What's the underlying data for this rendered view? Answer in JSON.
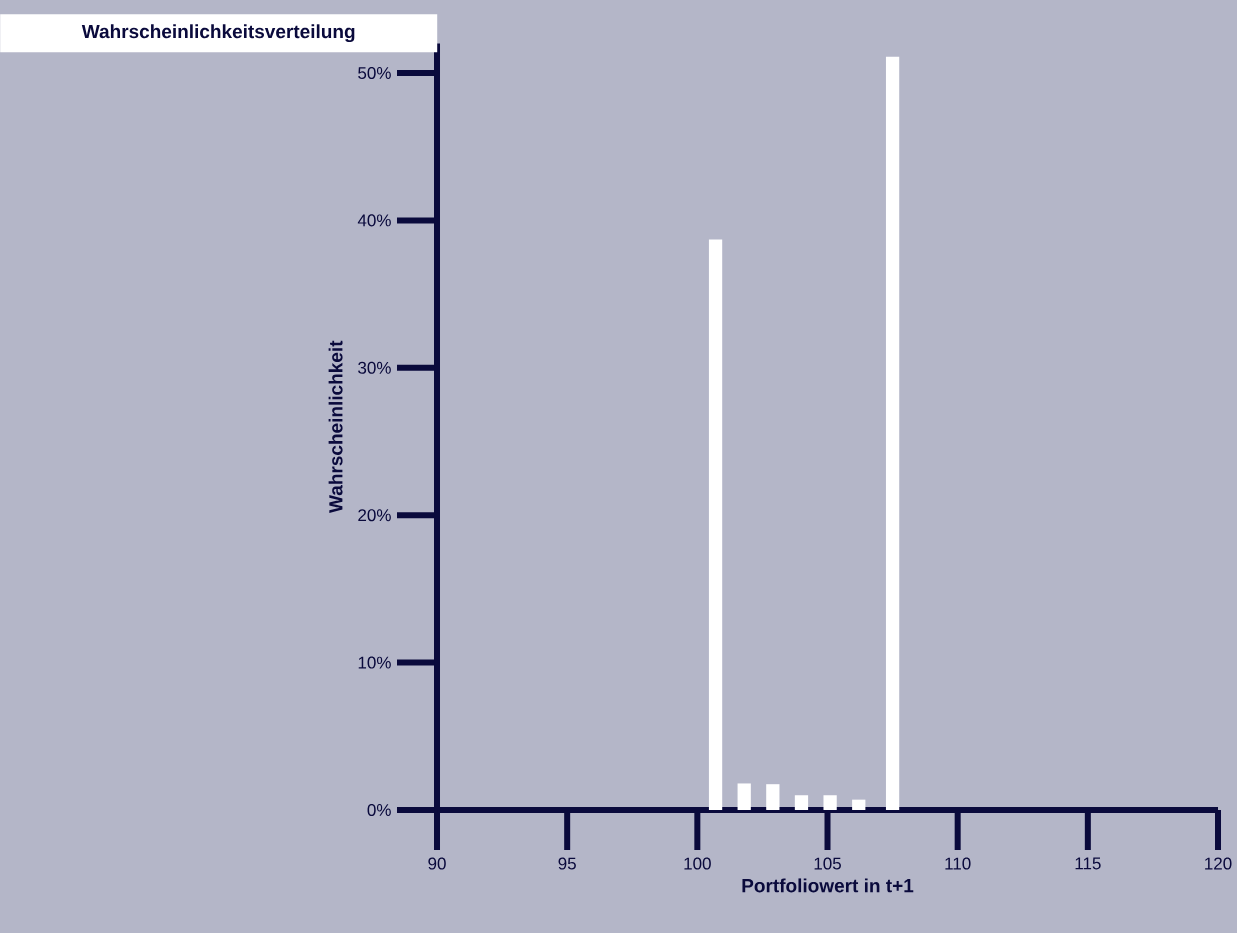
{
  "chart_data": {
    "type": "bar",
    "title": "Wahrscheinlichkeitsverteilung",
    "xlabel": "Portfoliowert in t+1",
    "ylabel": "Wahrscheinlichkeit",
    "x": [
      100.7,
      101.8,
      102.9,
      104.0,
      105.1,
      106.2,
      107.5
    ],
    "values": [
      38.7,
      1.8,
      1.75,
      1.0,
      1.0,
      0.7,
      51.1
    ],
    "color": "#ffffff",
    "xlim": [
      90,
      120
    ],
    "ylim": [
      0,
      52
    ],
    "xticks": [
      90,
      95,
      100,
      105,
      110,
      115,
      120
    ],
    "yticks": [
      {
        "value": 0,
        "label": "0%"
      },
      {
        "value": 10,
        "label": "10%"
      },
      {
        "value": 20,
        "label": "20%"
      },
      {
        "value": 30,
        "label": "30%"
      },
      {
        "value": 40,
        "label": "40%"
      },
      {
        "value": 50,
        "label": "50%"
      }
    ],
    "grid": false
  }
}
